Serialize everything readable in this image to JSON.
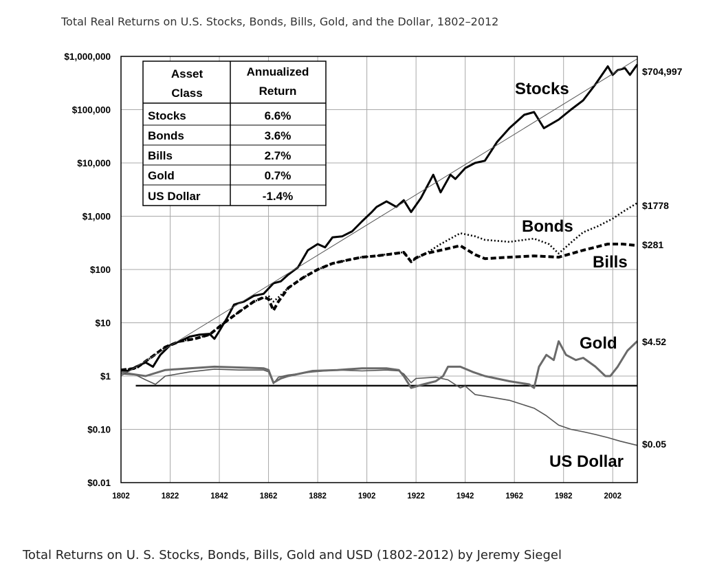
{
  "caption": "Total Returns on U. S. Stocks, Bonds, Bills, Gold and USD (1802-2012) by Jeremy Siegel",
  "chart_data": {
    "type": "line",
    "title": "Total Real Returns on U.S. Stocks, Bonds, Bills, Gold, and the Dollar, 1802–2012",
    "xlabel": "",
    "ylabel": "",
    "xlim": [
      1802,
      2012
    ],
    "ylim": [
      0.01,
      1000000
    ],
    "yscale": "log",
    "grid": true,
    "legend": "none",
    "x_ticks": [
      "1802",
      "1822",
      "1842",
      "1862",
      "1882",
      "1902",
      "1922",
      "1942",
      "1962",
      "1982",
      "2002"
    ],
    "y_ticks": [
      {
        "value": 1000000,
        "label": "$1,000,000"
      },
      {
        "value": 100000,
        "label": "$100,000"
      },
      {
        "value": 10000,
        "label": "$10,000"
      },
      {
        "value": 1000,
        "label": "$1,000"
      },
      {
        "value": 100,
        "label": "$100"
      },
      {
        "value": 10,
        "label": "$10"
      },
      {
        "value": 1,
        "label": "$1"
      },
      {
        "value": 0.1,
        "label": "$0.10"
      },
      {
        "value": 0.01,
        "label": "$0.01"
      }
    ],
    "table": {
      "headers": [
        [
          "Asset",
          "Class"
        ],
        [
          "Annualized",
          "Return"
        ]
      ],
      "rows": [
        {
          "asset": "Stocks",
          "return": "6.6%"
        },
        {
          "asset": "Bonds",
          "return": "3.6%"
        },
        {
          "asset": "Bills",
          "return": "2.7%"
        },
        {
          "asset": "Gold",
          "return": "0.7%"
        },
        {
          "asset": "US Dollar",
          "return": "-1.4%"
        }
      ]
    },
    "trend_line": {
      "x": [
        1802,
        2012
      ],
      "y": [
        1,
        900000
      ]
    },
    "baseline": {
      "x": [
        1808,
        2012
      ],
      "y": [
        0.66,
        0.66
      ]
    },
    "series": [
      {
        "name": "Stocks",
        "end_label": "$704,997",
        "color": "#000000",
        "style": "solid",
        "x": [
          1802,
          1805,
          1808,
          1812,
          1815,
          1818,
          1822,
          1826,
          1830,
          1834,
          1838,
          1840,
          1842,
          1845,
          1848,
          1852,
          1856,
          1860,
          1864,
          1867,
          1870,
          1874,
          1878,
          1882,
          1885,
          1888,
          1892,
          1896,
          1900,
          1904,
          1906,
          1910,
          1914,
          1917,
          1920,
          1924,
          1929,
          1932,
          1936,
          1938,
          1942,
          1946,
          1950,
          1955,
          1960,
          1966,
          1970,
          1974,
          1980,
          1985,
          1990,
          1995,
          2000,
          2002,
          2004,
          2007,
          2009,
          2012
        ],
        "y": [
          1.3,
          1.25,
          1.5,
          1.8,
          1.5,
          2.5,
          3.8,
          4.5,
          5.5,
          6,
          6.2,
          5,
          7,
          12,
          22,
          25,
          32,
          35,
          55,
          60,
          80,
          110,
          230,
          300,
          260,
          400,
          420,
          520,
          800,
          1200,
          1500,
          1900,
          1500,
          2000,
          1200,
          2200,
          6000,
          2800,
          6000,
          5000,
          8000,
          10000,
          11000,
          25000,
          45000,
          80000,
          90000,
          45000,
          65000,
          100000,
          150000,
          300000,
          650000,
          450000,
          550000,
          600000,
          450000,
          704997
        ]
      },
      {
        "name": "Bonds",
        "end_label": "$1778",
        "color": "#000000",
        "style": "dotted",
        "x": [
          1802,
          1808,
          1814,
          1820,
          1826,
          1832,
          1838,
          1844,
          1850,
          1856,
          1862,
          1864,
          1866,
          1870,
          1876,
          1882,
          1888,
          1894,
          1900,
          1906,
          1912,
          1917,
          1920,
          1922,
          1926,
          1932,
          1940,
          1946,
          1950,
          1960,
          1966,
          1970,
          1976,
          1980,
          1986,
          1990,
          1996,
          2002,
          2006,
          2012
        ],
        "y": [
          1.3,
          1.4,
          2.2,
          3.5,
          4.5,
          5,
          6,
          10,
          16,
          25,
          32,
          25,
          30,
          45,
          70,
          100,
          130,
          150,
          170,
          180,
          200,
          210,
          140,
          160,
          200,
          300,
          480,
          420,
          360,
          330,
          360,
          380,
          300,
          200,
          350,
          500,
          650,
          900,
          1200,
          1778
        ]
      },
      {
        "name": "Bills",
        "end_label": "$281",
        "color": "#000000",
        "style": "dashed",
        "x": [
          1802,
          1808,
          1814,
          1820,
          1826,
          1832,
          1838,
          1844,
          1850,
          1856,
          1860,
          1862,
          1864,
          1866,
          1870,
          1876,
          1882,
          1888,
          1894,
          1900,
          1906,
          1912,
          1917,
          1920,
          1922,
          1926,
          1932,
          1940,
          1946,
          1950,
          1960,
          1970,
          1980,
          1990,
          2000,
          2006,
          2012
        ],
        "y": [
          1.3,
          1.4,
          2.2,
          3.5,
          4.5,
          5,
          6,
          10,
          16,
          25,
          30,
          28,
          17,
          25,
          45,
          70,
          100,
          130,
          150,
          170,
          180,
          195,
          210,
          140,
          165,
          200,
          230,
          280,
          190,
          160,
          170,
          180,
          170,
          230,
          300,
          300,
          281
        ]
      },
      {
        "name": "Gold",
        "end_label": "$4.52",
        "color": "#6a6a6a",
        "style": "solid",
        "x": [
          1802,
          1806,
          1812,
          1820,
          1830,
          1840,
          1850,
          1860,
          1862,
          1864,
          1867,
          1870,
          1880,
          1890,
          1900,
          1910,
          1915,
          1917,
          1920,
          1925,
          1930,
          1933,
          1935,
          1940,
          1945,
          1950,
          1960,
          1968,
          1970,
          1972,
          1975,
          1978,
          1980,
          1983,
          1987,
          1990,
          1995,
          1999,
          2001,
          2004,
          2008,
          2012
        ],
        "y": [
          1.2,
          1.1,
          1.0,
          1.3,
          1.4,
          1.5,
          1.45,
          1.4,
          1.3,
          0.75,
          0.9,
          1.0,
          1.25,
          1.3,
          1.4,
          1.4,
          1.3,
          1.0,
          0.6,
          0.7,
          0.8,
          1.0,
          1.5,
          1.5,
          1.2,
          1.0,
          0.8,
          0.7,
          0.6,
          1.5,
          2.5,
          2.0,
          4.5,
          2.5,
          2.0,
          2.2,
          1.5,
          1.0,
          1.0,
          1.5,
          3.0,
          4.52
        ]
      },
      {
        "name": "US Dollar",
        "end_label": "$0.05",
        "color": "#555555",
        "style": "solid",
        "x": [
          1802,
          1808,
          1812,
          1816,
          1820,
          1830,
          1840,
          1850,
          1860,
          1862,
          1864,
          1866,
          1870,
          1880,
          1890,
          1900,
          1910,
          1915,
          1917,
          1920,
          1922,
          1930,
          1935,
          1940,
          1942,
          1946,
          1950,
          1960,
          1970,
          1975,
          1980,
          1985,
          1990,
          1995,
          2000,
          2005,
          2012
        ],
        "y": [
          1.1,
          1.05,
          0.85,
          0.7,
          1.0,
          1.2,
          1.35,
          1.3,
          1.3,
          1.2,
          0.72,
          0.95,
          1.05,
          1.2,
          1.3,
          1.25,
          1.3,
          1.25,
          1.1,
          0.75,
          0.9,
          0.95,
          0.85,
          0.6,
          0.65,
          0.45,
          0.42,
          0.35,
          0.25,
          0.18,
          0.12,
          0.1,
          0.09,
          0.08,
          0.07,
          0.06,
          0.05
        ]
      }
    ]
  }
}
